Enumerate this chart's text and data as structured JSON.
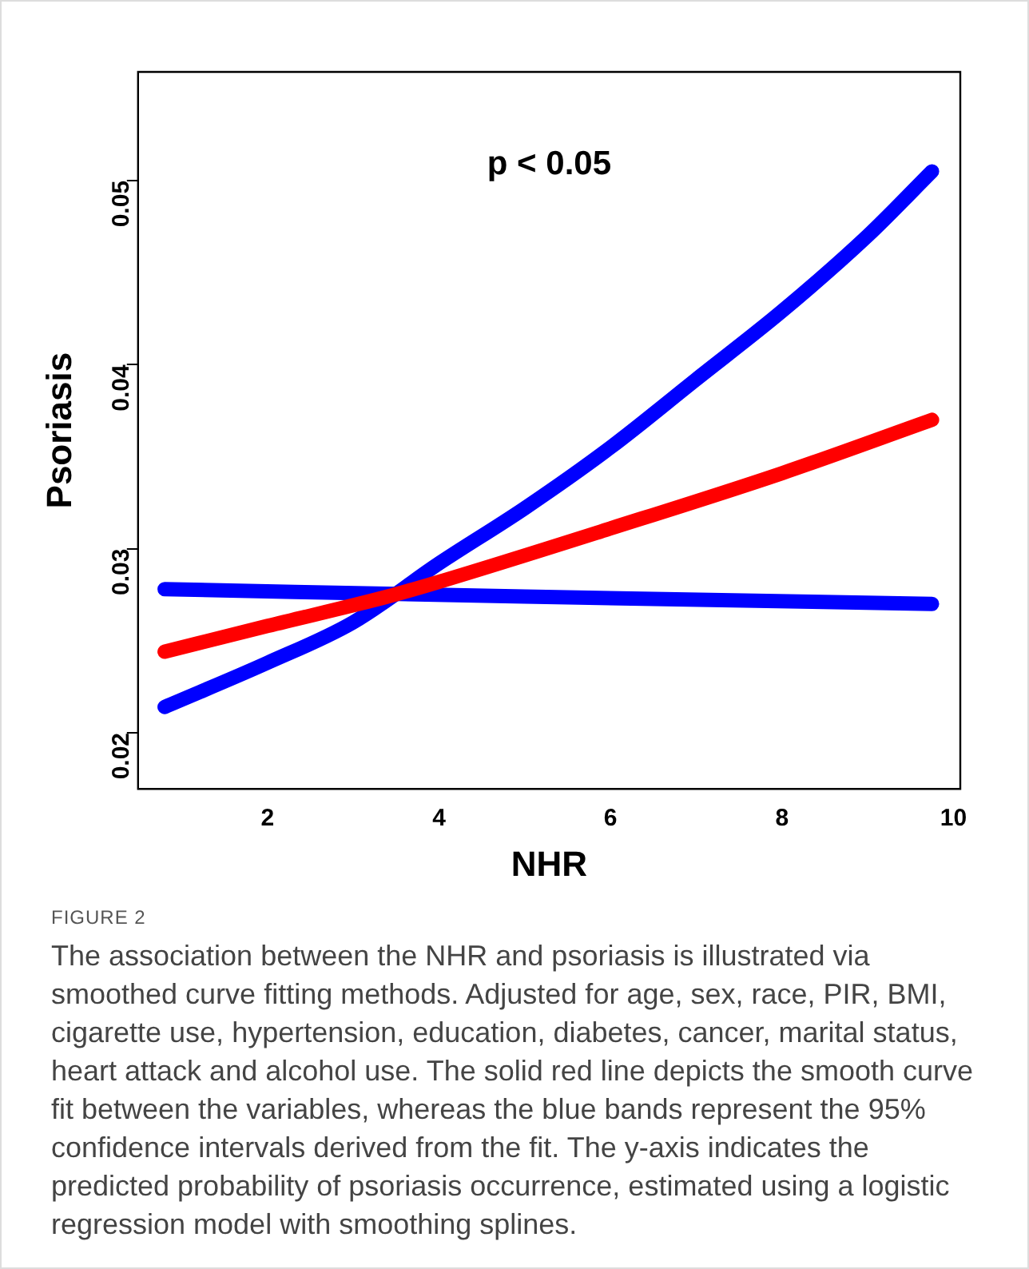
{
  "chart_data": {
    "type": "line",
    "xlabel": "NHR",
    "ylabel": "Psoriasis",
    "xlim": [
      0.49,
      10.08
    ],
    "ylim": [
      0.01695,
      0.0559
    ],
    "xticks": [
      2,
      4,
      6,
      8,
      10
    ],
    "yticks": [
      0.02,
      0.03,
      0.04,
      0.05
    ],
    "grid": false,
    "legend": false,
    "marker": "none",
    "line_style": "solid",
    "series": [
      {
        "color": "#ff0000",
        "x": [
          0.8,
          2,
          3.4,
          4,
          6,
          8,
          9.75
        ],
        "values": [
          0.0244,
          0.0258,
          0.0274,
          0.0282,
          0.0311,
          0.0341,
          0.037
        ]
      },
      {
        "color": "#0000ff",
        "x": [
          0.8,
          2,
          3,
          4,
          5,
          6,
          7,
          8,
          9,
          9.75
        ],
        "values": [
          0.0214,
          0.0238,
          0.026,
          0.0292,
          0.0322,
          0.0355,
          0.0392,
          0.0429,
          0.047,
          0.0505
        ]
      },
      {
        "color": "#0000ff",
        "x": [
          0.8,
          5,
          9.75
        ],
        "values": [
          0.0278,
          0.0274,
          0.027
        ]
      }
    ],
    "annotations": [
      "p < 0.05",
      "FIGURE 2",
      "The association between the NHR and psoriasis is illustrated via smoothed curve fitting methods. Adjusted for age, sex, race, PIR, BMI, cigarette use, hypertension, education, diabetes, cancer, marital status, heart attack and alcohol use. The solid red line depicts the smooth curve fit between the variables, whereas the blue bands represent the 95% confidence intervals derived from the fit. The y-axis indicates the predicted probability of psoriasis occurrence, estimated using a logistic regression model with smoothing splines."
    ]
  }
}
